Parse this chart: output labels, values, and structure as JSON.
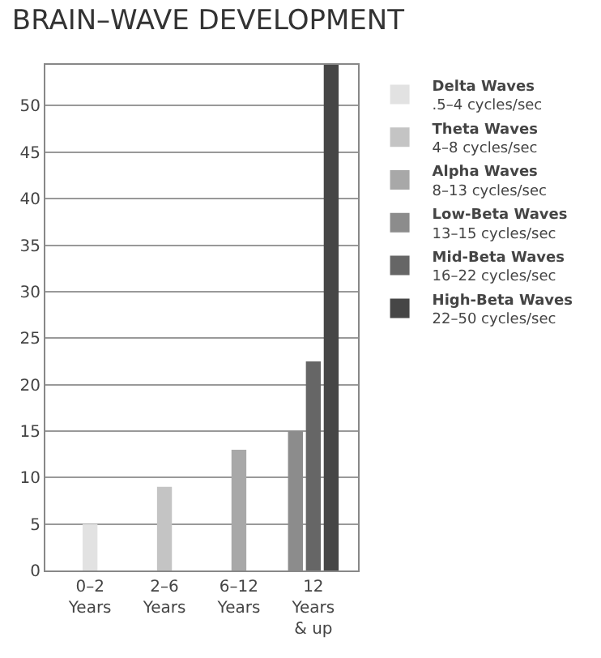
{
  "chart_data": {
    "type": "bar",
    "title": "BRAIN–WAVE DEVELOPMENT",
    "categories": [
      "0–2\nYears",
      "2–6\nYears",
      "6–12\nYears",
      "12\nYears\n& up"
    ],
    "series": [
      {
        "name": "Delta Waves\n.5–4 cycles/sec",
        "color": "#e2e2e2",
        "values": [
          5,
          null,
          null,
          null
        ]
      },
      {
        "name": "Theta Waves\n4–8 cycles/sec",
        "color": "#c4c4c4",
        "values": [
          null,
          9,
          null,
          null
        ]
      },
      {
        "name": "Alpha Waves\n8–13 cycles/sec",
        "color": "#a8a8a8",
        "values": [
          null,
          null,
          13,
          null
        ]
      },
      {
        "name": "Low-Beta Waves\n13–15 cycles/sec",
        "color": "#8c8c8c",
        "values": [
          null,
          null,
          null,
          15
        ]
      },
      {
        "name": "Mid-Beta Waves\n16–22 cycles/sec",
        "color": "#666666",
        "values": [
          null,
          null,
          null,
          22.5
        ]
      },
      {
        "name": "High-Beta Waves\n22–50 cycles/sec",
        "color": "#464646",
        "values": [
          null,
          null,
          null,
          54.4
        ]
      }
    ],
    "ylim": [
      0,
      54.4
    ],
    "yticks": [
      0,
      5,
      10,
      15,
      20,
      25,
      30,
      35,
      40,
      45,
      50
    ],
    "grid": "y",
    "legend": "right"
  }
}
